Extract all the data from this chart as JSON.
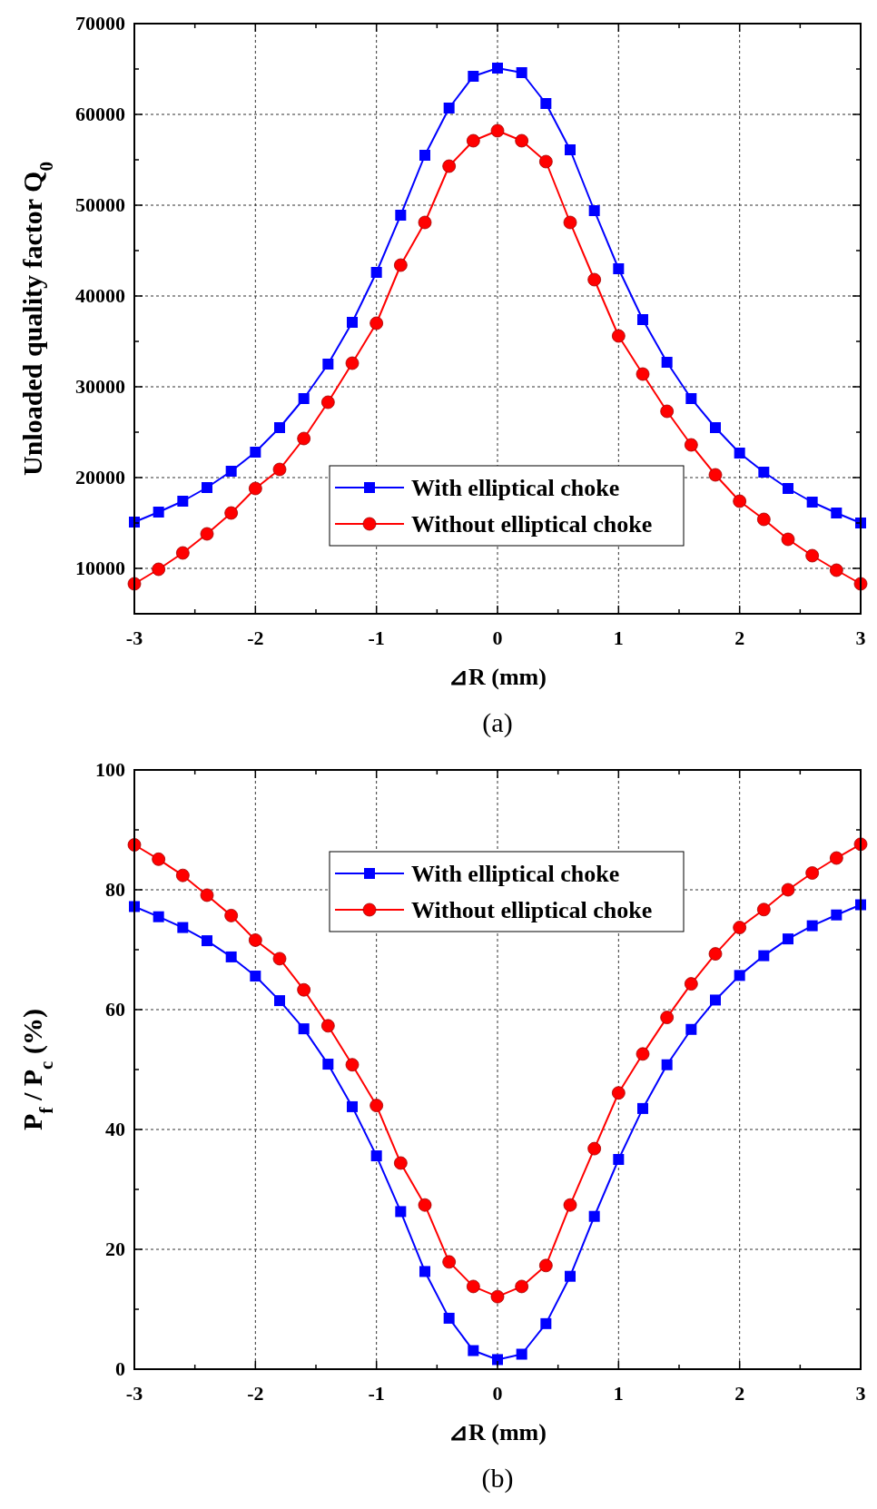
{
  "chart_data": [
    {
      "type": "line",
      "xlabel": "⊿R (mm)",
      "ylabel": "Unloaded quality factor Q$_{0}$",
      "annotations": [
        "(a)"
      ],
      "x": [
        -3,
        -2.8,
        -2.6,
        -2.4,
        -2.2,
        -2,
        -1.8,
        -1.6,
        -1.4,
        -1.2,
        -1,
        -0.8,
        -0.6,
        -0.4,
        -0.2,
        0,
        0.2,
        0.4,
        0.6,
        0.8,
        1,
        1.2,
        1.4,
        1.6,
        1.8,
        2,
        2.2,
        2.4,
        2.6,
        2.8,
        3
      ],
      "series": [
        {
          "name": "With elliptical choke",
          "color": "#0000ff",
          "marker": "square",
          "values": [
            15100,
            16200,
            17400,
            18900,
            20700,
            22800,
            25500,
            28700,
            32500,
            37100,
            42600,
            48900,
            55500,
            60700,
            64200,
            65100,
            64600,
            61200,
            56100,
            49400,
            43000,
            37400,
            32700,
            28700,
            25500,
            22700,
            20600,
            18800,
            17300,
            16100,
            15000
          ]
        },
        {
          "name": "Without elliptical choke",
          "color": "#ff0000",
          "marker": "circle",
          "values": [
            8300,
            9900,
            11700,
            13800,
            16100,
            18800,
            20900,
            24300,
            28300,
            32600,
            37000,
            43400,
            48100,
            54300,
            57100,
            58200,
            57100,
            54800,
            48100,
            41800,
            35600,
            31400,
            27300,
            23600,
            20300,
            17400,
            15400,
            13200,
            11400,
            9800,
            8300
          ]
        }
      ],
      "xlim": [
        -3,
        3
      ],
      "xticks": [
        -3,
        {
          "value": -2.5,
          "label": null
        },
        -2,
        {
          "value": -1.5,
          "label": null
        },
        -1,
        {
          "value": -0.5,
          "label": null
        },
        0,
        {
          "value": 0.5,
          "label": null
        },
        1,
        {
          "value": 1.5,
          "label": null
        },
        2,
        {
          "value": 2.5,
          "label": null
        },
        3
      ],
      "ylim": [
        5000,
        70000
      ],
      "yticks": [
        10000,
        {
          "value": 15000,
          "label": null
        },
        20000,
        {
          "value": 25000,
          "label": null
        },
        30000,
        {
          "value": 35000,
          "label": null
        },
        40000,
        {
          "value": 45000,
          "label": null
        },
        50000,
        {
          "value": 55000,
          "label": null
        },
        60000,
        {
          "value": 65000,
          "label": null
        },
        70000
      ],
      "grid": true,
      "legend": "bottom",
      "line_style": "solid"
    },
    {
      "type": "line",
      "xlabel": "⊿R (mm)",
      "ylabel": "P$_{f}$ / P$_{c}$ (%)",
      "annotations": [
        "(b)"
      ],
      "x": [
        -3,
        -2.8,
        -2.6,
        -2.4,
        -2.2,
        -2,
        -1.8,
        -1.6,
        -1.4,
        -1.2,
        -1,
        -0.8,
        -0.6,
        -0.4,
        -0.2,
        0,
        0.2,
        0.4,
        0.6,
        0.8,
        1,
        1.2,
        1.4,
        1.6,
        1.8,
        2,
        2.2,
        2.4,
        2.6,
        2.8,
        3
      ],
      "series": [
        {
          "name": "With elliptical choke",
          "color": "#0000ff",
          "marker": "square",
          "values": [
            77.2,
            75.5,
            73.7,
            71.5,
            68.8,
            65.6,
            61.5,
            56.8,
            50.9,
            43.8,
            35.6,
            26.3,
            16.3,
            8.5,
            3.1,
            1.6,
            2.5,
            7.6,
            15.5,
            25.5,
            35.0,
            43.5,
            50.8,
            56.7,
            61.6,
            65.7,
            69.0,
            71.8,
            74.0,
            75.8,
            77.5
          ]
        },
        {
          "name": "Without elliptical choke",
          "color": "#ff0000",
          "marker": "circle",
          "values": [
            87.5,
            85.1,
            82.4,
            79.1,
            75.7,
            71.6,
            68.5,
            63.3,
            57.3,
            50.8,
            44.0,
            34.4,
            27.4,
            17.9,
            13.8,
            12.1,
            13.8,
            17.3,
            27.4,
            36.8,
            46.1,
            52.6,
            58.7,
            64.3,
            69.3,
            73.7,
            76.7,
            80.0,
            82.8,
            85.3,
            87.6
          ]
        }
      ],
      "xlim": [
        -3,
        3
      ],
      "xticks": [
        -3,
        {
          "value": -2.5,
          "label": null
        },
        -2,
        {
          "value": -1.5,
          "label": null
        },
        -1,
        {
          "value": -0.5,
          "label": null
        },
        0,
        {
          "value": 0.5,
          "label": null
        },
        1,
        {
          "value": 1.5,
          "label": null
        },
        2,
        {
          "value": 2.5,
          "label": null
        },
        3
      ],
      "ylim": [
        0,
        100
      ],
      "yticks": [
        0,
        {
          "value": 10,
          "label": null
        },
        20,
        {
          "value": 30,
          "label": null
        },
        40,
        {
          "value": 50,
          "label": null
        },
        60,
        {
          "value": 70,
          "label": null
        },
        80,
        {
          "value": 90,
          "label": null
        },
        100
      ],
      "grid": true,
      "legend": "top",
      "line_style": "solid"
    }
  ]
}
